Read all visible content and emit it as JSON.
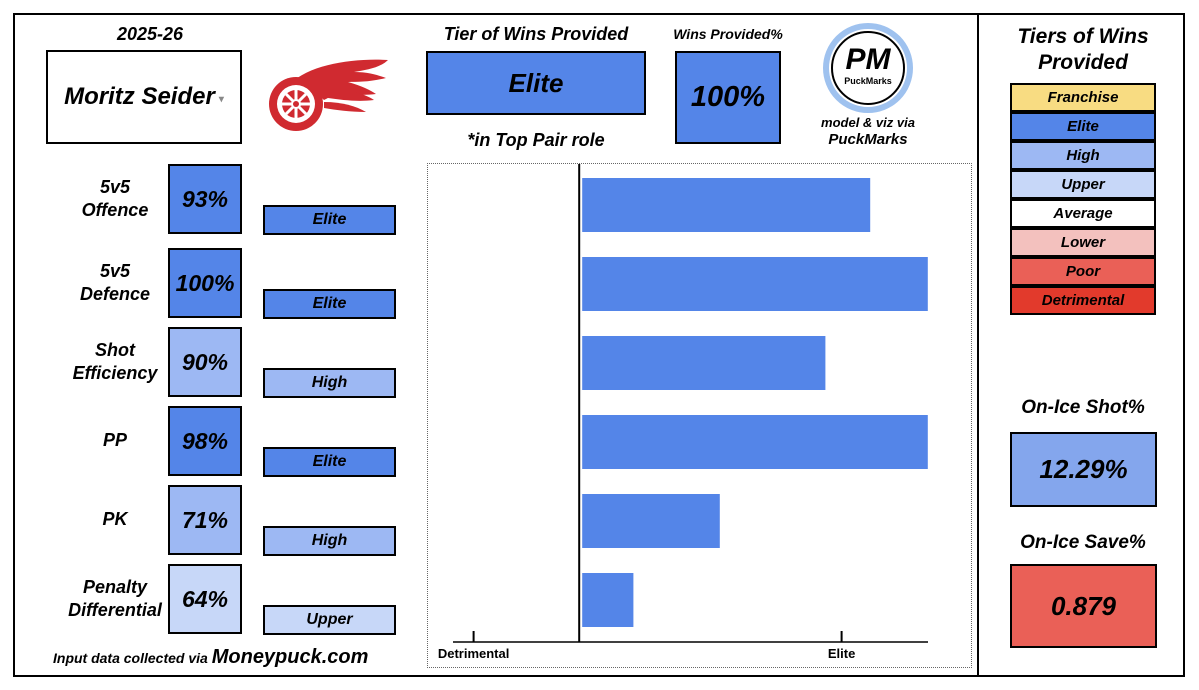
{
  "season": "2025-26",
  "player": {
    "name": "Moritz Seider",
    "team_logo": "red-wings-logo"
  },
  "tier_of_wins": {
    "title": "Tier of Wins Provided",
    "value": "Elite",
    "role_note": "*in Top Pair role"
  },
  "wins_provided": {
    "title": "Wins Provided%",
    "value": "100%"
  },
  "brand": {
    "logo_text": "PM",
    "logo_subtext": "PuckMarks",
    "credit_line1": "model & viz via",
    "credit_line2": "PuckMarks"
  },
  "metrics": [
    {
      "label_line1": "5v5",
      "label_line2": "Offence",
      "pct": "93%",
      "tier": "Elite",
      "color": "#5485e8"
    },
    {
      "label_line1": "5v5",
      "label_line2": "Defence",
      "pct": "100%",
      "tier": "Elite",
      "color": "#5485e8"
    },
    {
      "label_line1": "Shot",
      "label_line2": "Efficiency",
      "pct": "90%",
      "tier": "High",
      "color": "#9db8f3"
    },
    {
      "label_line1": "PP",
      "label_line2": "",
      "pct": "98%",
      "tier": "Elite",
      "color": "#5485e8"
    },
    {
      "label_line1": "PK",
      "label_line2": "",
      "pct": "71%",
      "tier": "High",
      "color": "#9db8f3"
    },
    {
      "label_line1": "Penalty",
      "label_line2": "Differential",
      "pct": "64%",
      "tier": "Upper",
      "color": "#c7d7f8"
    }
  ],
  "chart_data": {
    "type": "bar",
    "orientation": "horizontal",
    "categories": [
      "5v5 Offence",
      "5v5 Defence",
      "Shot Efficiency",
      "PP",
      "PK",
      "Penalty Differential"
    ],
    "values": [
      0.9,
      1.08,
      0.76,
      1.08,
      0.43,
      0.16
    ],
    "x_ticks": [
      {
        "label": "Detrimental",
        "value": -0.33
      },
      {
        "label": "Elite",
        "value": 0.82
      }
    ],
    "xlim": [
      -0.46,
      1.09
    ],
    "zero_line": 0,
    "bar_color": "#5485e8",
    "grid": false
  },
  "legend": {
    "title_line1": "Tiers of Wins",
    "title_line2": "Provided",
    "tiers": [
      {
        "label": "Franchise",
        "color": "#f8dc82"
      },
      {
        "label": "Elite",
        "color": "#5485e8"
      },
      {
        "label": "High",
        "color": "#9db8f3"
      },
      {
        "label": "Upper",
        "color": "#c7d7f8"
      },
      {
        "label": "Average",
        "color": "#ffffff"
      },
      {
        "label": "Lower",
        "color": "#f3c1be"
      },
      {
        "label": "Poor",
        "color": "#ea6057"
      },
      {
        "label": "Detrimental",
        "color": "#e23a2c"
      }
    ]
  },
  "on_ice_shot": {
    "title": "On-Ice Shot%",
    "value": "12.29%",
    "color": "#84a6ed"
  },
  "on_ice_save": {
    "title": "On-Ice Save%",
    "value": "0.879",
    "color": "#ea6057"
  },
  "footer": {
    "prefix": "Input data collected via",
    "source": "Moneypuck.com"
  }
}
